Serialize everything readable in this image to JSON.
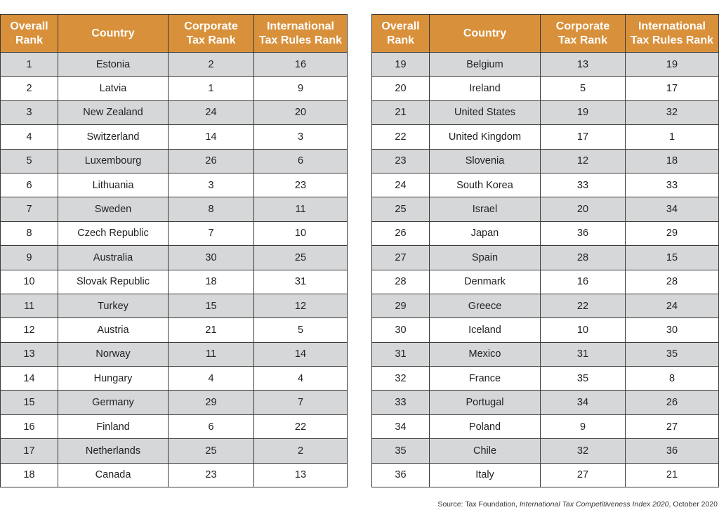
{
  "tables": [
    {
      "headers": [
        [
          "Overall",
          "Rank"
        ],
        [
          "Country"
        ],
        [
          "Corporate",
          "Tax Rank"
        ],
        [
          "International",
          "Tax Rules Rank"
        ]
      ],
      "rows": [
        [
          1,
          "Estonia",
          2,
          16
        ],
        [
          2,
          "Latvia",
          1,
          9
        ],
        [
          3,
          "New Zealand",
          24,
          20
        ],
        [
          4,
          "Switzerland",
          14,
          3
        ],
        [
          5,
          "Luxembourg",
          26,
          6
        ],
        [
          6,
          "Lithuania",
          3,
          23
        ],
        [
          7,
          "Sweden",
          8,
          11
        ],
        [
          8,
          "Czech Republic",
          7,
          10
        ],
        [
          9,
          "Australia",
          30,
          25
        ],
        [
          10,
          "Slovak Republic",
          18,
          31
        ],
        [
          11,
          "Turkey",
          15,
          12
        ],
        [
          12,
          "Austria",
          21,
          5
        ],
        [
          13,
          "Norway",
          11,
          14
        ],
        [
          14,
          "Hungary",
          4,
          4
        ],
        [
          15,
          "Germany",
          29,
          7
        ],
        [
          16,
          "Finland",
          6,
          22
        ],
        [
          17,
          "Netherlands",
          25,
          2
        ],
        [
          18,
          "Canada",
          23,
          13
        ]
      ]
    },
    {
      "headers": [
        [
          "Overall",
          "Rank"
        ],
        [
          "Country"
        ],
        [
          "Corporate",
          "Tax Rank"
        ],
        [
          "International",
          "Tax Rules Rank"
        ]
      ],
      "rows": [
        [
          19,
          "Belgium",
          13,
          19
        ],
        [
          20,
          "Ireland",
          5,
          17
        ],
        [
          21,
          "United States",
          19,
          32
        ],
        [
          22,
          "United Kingdom",
          17,
          1
        ],
        [
          23,
          "Slovenia",
          12,
          18
        ],
        [
          24,
          "South Korea",
          33,
          33
        ],
        [
          25,
          "Israel",
          20,
          34
        ],
        [
          26,
          "Japan",
          36,
          29
        ],
        [
          27,
          "Spain",
          28,
          15
        ],
        [
          28,
          "Denmark",
          16,
          28
        ],
        [
          29,
          "Greece",
          22,
          24
        ],
        [
          30,
          "Iceland",
          10,
          30
        ],
        [
          31,
          "Mexico",
          31,
          35
        ],
        [
          32,
          "France",
          35,
          8
        ],
        [
          33,
          "Portugal",
          34,
          26
        ],
        [
          34,
          "Poland",
          9,
          27
        ],
        [
          35,
          "Chile",
          32,
          36
        ],
        [
          36,
          "Italy",
          27,
          21
        ]
      ]
    }
  ],
  "source": {
    "prefix": "Source: Tax Foundation, ",
    "title": "International Tax Competitiveness Index 2020",
    "suffix": ", October 2020"
  }
}
